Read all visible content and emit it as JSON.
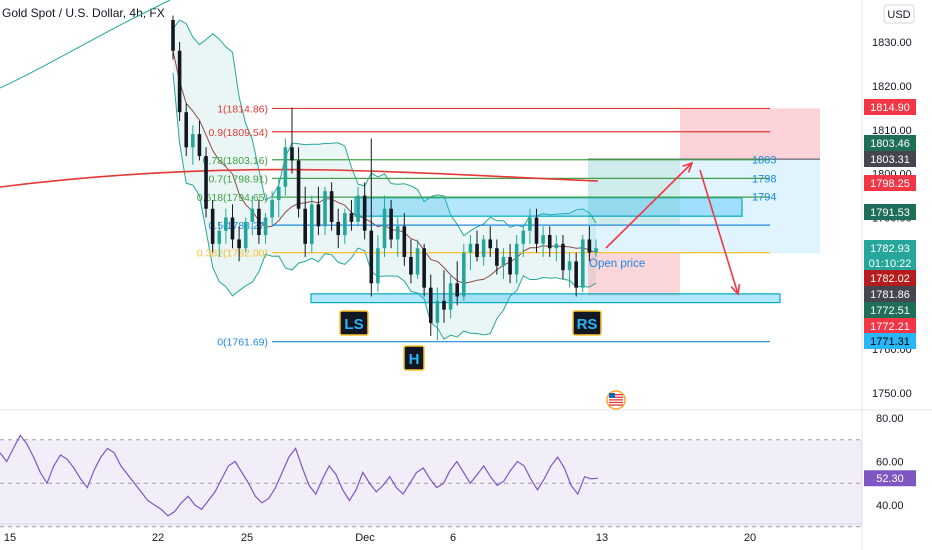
{
  "header": {
    "symbol_title": "Gold Spot / U.S. Dollar, 4h, FX",
    "currency": "USD"
  },
  "chart_data": {
    "type": "candlestick",
    "title": "Gold Spot / U.S. Dollar, 4h, FX",
    "currency": "USD",
    "price_axis": {
      "ticks": [
        "1830.00",
        "1820.00",
        "1810.00",
        "1800.00",
        "1790.00",
        "1780.00",
        "1760.00",
        "1750.00"
      ],
      "range": [
        1745,
        1834
      ]
    },
    "time_axis": {
      "ticks": [
        "15",
        "22",
        "25",
        "Dec",
        "6",
        "13",
        "20"
      ]
    },
    "price_badges": [
      {
        "text": "1814.90",
        "color": "#f23645",
        "text_color": "#ffffff"
      },
      {
        "text": "1803.46",
        "color": "#1e6e5a",
        "text_color": "#ffffff"
      },
      {
        "text": "1803.31",
        "color": "#434651",
        "text_color": "#ffffff"
      },
      {
        "text": "1798.25",
        "color": "#f23645",
        "text_color": "#ffffff"
      },
      {
        "text": "1791.53",
        "color": "#1e6e5a",
        "text_color": "#ffffff"
      },
      {
        "text": "1782.93",
        "color": "#26a69a",
        "text_color": "#ffffff"
      },
      {
        "text": "01:10:22",
        "color": "#26a69a",
        "text_color": "#ffffff"
      },
      {
        "text": "1782.02",
        "color": "#b71c1c",
        "text_color": "#ffffff"
      },
      {
        "text": "1781.86",
        "color": "#434651",
        "text_color": "#ffffff"
      },
      {
        "text": "1772.51",
        "color": "#1e6e5a",
        "text_color": "#ffffff"
      },
      {
        "text": "1772.21",
        "color": "#f23645",
        "text_color": "#ffffff"
      },
      {
        "text": "1771.31",
        "color": "#29b6f6",
        "text_color": "#000000"
      }
    ],
    "fib_levels": [
      {
        "level": "1",
        "price": "1814.86",
        "color": "#e53935"
      },
      {
        "level": "0.9",
        "price": "1809.54",
        "color": "#e53935"
      },
      {
        "level": "0.78",
        "price": "1803.16",
        "color": "#43a047"
      },
      {
        "level": "0.7",
        "price": "1798.91",
        "color": "#43a047"
      },
      {
        "level": "0.618",
        "price": "1794.65",
        "color": "#43a047"
      },
      {
        "level": "0.5",
        "price": "1788.27",
        "color": "#1e88e5"
      },
      {
        "level": "0.382",
        "price": "1782.00",
        "color": "#fbc02d"
      },
      {
        "level": "0",
        "price": "1761.69",
        "color": "#1e88e5"
      }
    ],
    "level_labels": [
      "1803",
      "1798",
      "1794"
    ],
    "pattern_labels": [
      "LS",
      "H",
      "RS"
    ],
    "annotation": "Open price",
    "candles": [
      {
        "o": 1835,
        "h": 1836,
        "l": 1826,
        "c": 1828
      },
      {
        "o": 1828,
        "h": 1830,
        "l": 1812,
        "c": 1814
      },
      {
        "o": 1814,
        "h": 1816,
        "l": 1804,
        "c": 1806
      },
      {
        "o": 1806,
        "h": 1811,
        "l": 1802,
        "c": 1809
      },
      {
        "o": 1809,
        "h": 1812,
        "l": 1803,
        "c": 1804
      },
      {
        "o": 1804,
        "h": 1806,
        "l": 1790,
        "c": 1792
      },
      {
        "o": 1792,
        "h": 1794,
        "l": 1782,
        "c": 1784
      },
      {
        "o": 1784,
        "h": 1789,
        "l": 1781,
        "c": 1787
      },
      {
        "o": 1787,
        "h": 1792,
        "l": 1784,
        "c": 1790
      },
      {
        "o": 1790,
        "h": 1793,
        "l": 1783,
        "c": 1785
      },
      {
        "o": 1785,
        "h": 1788,
        "l": 1780,
        "c": 1783
      },
      {
        "o": 1783,
        "h": 1790,
        "l": 1782,
        "c": 1789
      },
      {
        "o": 1789,
        "h": 1795,
        "l": 1786,
        "c": 1792
      },
      {
        "o": 1792,
        "h": 1794,
        "l": 1784,
        "c": 1786
      },
      {
        "o": 1786,
        "h": 1791,
        "l": 1784,
        "c": 1790
      },
      {
        "o": 1790,
        "h": 1796,
        "l": 1788,
        "c": 1794
      },
      {
        "o": 1794,
        "h": 1799,
        "l": 1790,
        "c": 1797
      },
      {
        "o": 1797,
        "h": 1808,
        "l": 1795,
        "c": 1806
      },
      {
        "o": 1806,
        "h": 1815,
        "l": 1800,
        "c": 1803
      },
      {
        "o": 1803,
        "h": 1806,
        "l": 1790,
        "c": 1792
      },
      {
        "o": 1792,
        "h": 1797,
        "l": 1781,
        "c": 1784
      },
      {
        "o": 1784,
        "h": 1795,
        "l": 1782,
        "c": 1793
      },
      {
        "o": 1793,
        "h": 1797,
        "l": 1786,
        "c": 1788
      },
      {
        "o": 1788,
        "h": 1797,
        "l": 1786,
        "c": 1796
      },
      {
        "o": 1796,
        "h": 1798,
        "l": 1787,
        "c": 1789
      },
      {
        "o": 1789,
        "h": 1792,
        "l": 1783,
        "c": 1786
      },
      {
        "o": 1786,
        "h": 1792,
        "l": 1784,
        "c": 1791
      },
      {
        "o": 1791,
        "h": 1794,
        "l": 1787,
        "c": 1789
      },
      {
        "o": 1789,
        "h": 1797,
        "l": 1788,
        "c": 1795
      },
      {
        "o": 1795,
        "h": 1798,
        "l": 1785,
        "c": 1787
      },
      {
        "o": 1787,
        "h": 1808,
        "l": 1772,
        "c": 1775
      },
      {
        "o": 1775,
        "h": 1786,
        "l": 1773,
        "c": 1783
      },
      {
        "o": 1783,
        "h": 1795,
        "l": 1781,
        "c": 1792
      },
      {
        "o": 1792,
        "h": 1794,
        "l": 1783,
        "c": 1785
      },
      {
        "o": 1785,
        "h": 1790,
        "l": 1781,
        "c": 1788
      },
      {
        "o": 1788,
        "h": 1791,
        "l": 1779,
        "c": 1781
      },
      {
        "o": 1781,
        "h": 1785,
        "l": 1775,
        "c": 1777
      },
      {
        "o": 1777,
        "h": 1785,
        "l": 1776,
        "c": 1783
      },
      {
        "o": 1783,
        "h": 1784,
        "l": 1772,
        "c": 1774
      },
      {
        "o": 1774,
        "h": 1777,
        "l": 1763,
        "c": 1766
      },
      {
        "o": 1766,
        "h": 1774,
        "l": 1762,
        "c": 1771
      },
      {
        "o": 1771,
        "h": 1778,
        "l": 1766,
        "c": 1769
      },
      {
        "o": 1769,
        "h": 1777,
        "l": 1767,
        "c": 1775
      },
      {
        "o": 1775,
        "h": 1780,
        "l": 1770,
        "c": 1772
      },
      {
        "o": 1772,
        "h": 1784,
        "l": 1771,
        "c": 1782
      },
      {
        "o": 1782,
        "h": 1786,
        "l": 1778,
        "c": 1784
      },
      {
        "o": 1784,
        "h": 1787,
        "l": 1780,
        "c": 1781
      },
      {
        "o": 1781,
        "h": 1786,
        "l": 1779,
        "c": 1785
      },
      {
        "o": 1785,
        "h": 1788,
        "l": 1781,
        "c": 1783
      },
      {
        "o": 1783,
        "h": 1785,
        "l": 1777,
        "c": 1779
      },
      {
        "o": 1779,
        "h": 1783,
        "l": 1776,
        "c": 1781
      },
      {
        "o": 1781,
        "h": 1784,
        "l": 1775,
        "c": 1777
      },
      {
        "o": 1777,
        "h": 1786,
        "l": 1775,
        "c": 1784
      },
      {
        "o": 1784,
        "h": 1788,
        "l": 1781,
        "c": 1787
      },
      {
        "o": 1787,
        "h": 1792,
        "l": 1784,
        "c": 1790
      },
      {
        "o": 1790,
        "h": 1792,
        "l": 1782,
        "c": 1784
      },
      {
        "o": 1784,
        "h": 1788,
        "l": 1781,
        "c": 1786
      },
      {
        "o": 1786,
        "h": 1788,
        "l": 1781,
        "c": 1783
      },
      {
        "o": 1783,
        "h": 1786,
        "l": 1780,
        "c": 1784
      },
      {
        "o": 1784,
        "h": 1786,
        "l": 1776,
        "c": 1778
      },
      {
        "o": 1778,
        "h": 1782,
        "l": 1774,
        "c": 1780
      },
      {
        "o": 1780,
        "h": 1782,
        "l": 1772,
        "c": 1774
      },
      {
        "o": 1774,
        "h": 1786,
        "l": 1773,
        "c": 1785
      },
      {
        "o": 1785,
        "h": 1788,
        "l": 1780,
        "c": 1782
      },
      {
        "o": 1782,
        "h": 1785,
        "l": 1781,
        "c": 1783
      }
    ],
    "rsi": {
      "ticks": [
        "80.00",
        "60.00",
        "40.00"
      ],
      "range": [
        33,
        84
      ],
      "current": "52.30",
      "overbought": 70,
      "oversold": 30,
      "values": [
        64,
        60,
        66,
        72,
        68,
        62,
        55,
        50,
        58,
        63,
        61,
        57,
        52,
        48,
        56,
        62,
        66,
        64,
        58,
        54,
        50,
        46,
        42,
        40,
        38,
        35,
        37,
        41,
        44,
        40,
        38,
        42,
        46,
        52,
        58,
        60,
        55,
        50,
        44,
        41,
        43,
        48,
        55,
        62,
        66,
        57,
        49,
        45,
        52,
        58,
        54,
        47,
        42,
        47,
        55,
        50,
        46,
        49,
        53,
        48,
        45,
        50,
        55,
        57,
        52,
        48,
        50,
        56,
        60,
        55,
        50,
        54,
        58,
        53,
        49,
        51,
        56,
        60,
        58,
        52,
        47,
        52,
        58,
        62,
        57,
        49,
        45,
        53,
        52,
        52.3
      ]
    }
  }
}
